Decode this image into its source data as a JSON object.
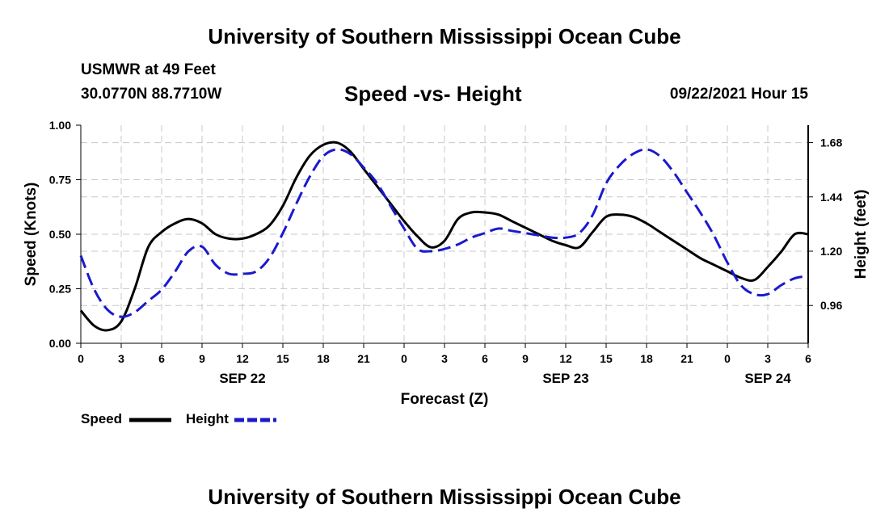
{
  "header": {
    "top_title": "University of Southern Mississippi Ocean Cube",
    "station": "USMWR at 49 Feet",
    "coords": "30.0770N  88.7710W",
    "chart_title": "Speed -vs- Height",
    "datetime": "09/22/2021 Hour 15"
  },
  "footer": {
    "bottom_title": "University of Southern Mississippi Ocean Cube"
  },
  "legend": {
    "speed_label": "Speed",
    "height_label": "Height"
  },
  "colors": {
    "speed": "#000000",
    "height": "#1a1acc",
    "grid": "#c8c8c8"
  },
  "chart_data": {
    "type": "line",
    "title": "Speed -vs- Height",
    "xlabel": "Forecast (Z)",
    "ylabel": "Speed (Knots)",
    "y2label": "Height (feet)",
    "xlim": [
      0,
      54
    ],
    "ylim": [
      0,
      1.0
    ],
    "y2lim": [
      0.793,
      1.757
    ],
    "x_ticks": [
      0,
      3,
      6,
      9,
      12,
      15,
      18,
      21,
      24,
      27,
      30,
      33,
      36,
      39,
      42,
      45,
      48,
      51,
      54
    ],
    "x_tick_labels": [
      "0",
      "3",
      "6",
      "9",
      "12",
      "15",
      "18",
      "21",
      "0",
      "3",
      "6",
      "9",
      "12",
      "15",
      "18",
      "21",
      "0",
      "3",
      "6"
    ],
    "date_labels": [
      {
        "x": 12,
        "label": "SEP 22"
      },
      {
        "x": 36,
        "label": "SEP 23"
      },
      {
        "x": 51,
        "label": "SEP 24"
      }
    ],
    "y_ticks": [
      0,
      0.25,
      0.5,
      0.75,
      1.0
    ],
    "y_tick_labels": [
      "0.00",
      "0.25",
      "0.50",
      "0.75",
      "1.00"
    ],
    "y2_ticks": [
      0.96,
      1.2,
      1.44,
      1.68
    ],
    "y2_tick_labels": [
      "0.96",
      "1.20",
      "1.44",
      "1.68"
    ],
    "grid": true,
    "series": [
      {
        "name": "Speed",
        "axis": "left",
        "style": "solid",
        "x": [
          0,
          1,
          2,
          3,
          4,
          5,
          6,
          7,
          8,
          9,
          10,
          11,
          12,
          13,
          14,
          15,
          16,
          17,
          18,
          19,
          20,
          21,
          22,
          23,
          24,
          25,
          26,
          27,
          28,
          29,
          30,
          31,
          32,
          33,
          34,
          35,
          36,
          37,
          38,
          39,
          40,
          41,
          42,
          43,
          44,
          45,
          46,
          47,
          48,
          49,
          50,
          51,
          52,
          53,
          54
        ],
        "values": [
          0.15,
          0.08,
          0.06,
          0.1,
          0.25,
          0.44,
          0.51,
          0.55,
          0.57,
          0.55,
          0.5,
          0.48,
          0.48,
          0.5,
          0.54,
          0.63,
          0.76,
          0.86,
          0.91,
          0.92,
          0.88,
          0.8,
          0.72,
          0.64,
          0.56,
          0.49,
          0.44,
          0.47,
          0.57,
          0.6,
          0.6,
          0.59,
          0.56,
          0.53,
          0.5,
          0.47,
          0.45,
          0.44,
          0.51,
          0.58,
          0.59,
          0.58,
          0.55,
          0.51,
          0.47,
          0.43,
          0.39,
          0.36,
          0.33,
          0.3,
          0.29,
          0.35,
          0.42,
          0.5,
          0.5
        ]
      },
      {
        "name": "Height",
        "axis": "right",
        "style": "dashed",
        "x": [
          0,
          1,
          2,
          3,
          4,
          5,
          6,
          7,
          8,
          9,
          10,
          11,
          12,
          13,
          14,
          15,
          16,
          17,
          18,
          19,
          20,
          21,
          22,
          23,
          24,
          25,
          26,
          27,
          28,
          29,
          30,
          31,
          32,
          33,
          34,
          35,
          36,
          37,
          38,
          39,
          40,
          41,
          42,
          43,
          44,
          45,
          46,
          47,
          48,
          49,
          50,
          51,
          52,
          53,
          54
        ],
        "values": [
          1.18,
          1.03,
          0.94,
          0.91,
          0.93,
          0.98,
          1.03,
          1.11,
          1.2,
          1.22,
          1.14,
          1.1,
          1.1,
          1.11,
          1.17,
          1.28,
          1.41,
          1.53,
          1.62,
          1.65,
          1.63,
          1.57,
          1.5,
          1.4,
          1.3,
          1.21,
          1.2,
          1.21,
          1.23,
          1.26,
          1.28,
          1.3,
          1.29,
          1.28,
          1.27,
          1.26,
          1.26,
          1.28,
          1.36,
          1.5,
          1.58,
          1.63,
          1.65,
          1.62,
          1.55,
          1.46,
          1.37,
          1.27,
          1.15,
          1.05,
          1.01,
          1.01,
          1.05,
          1.08,
          1.09
        ]
      }
    ]
  }
}
